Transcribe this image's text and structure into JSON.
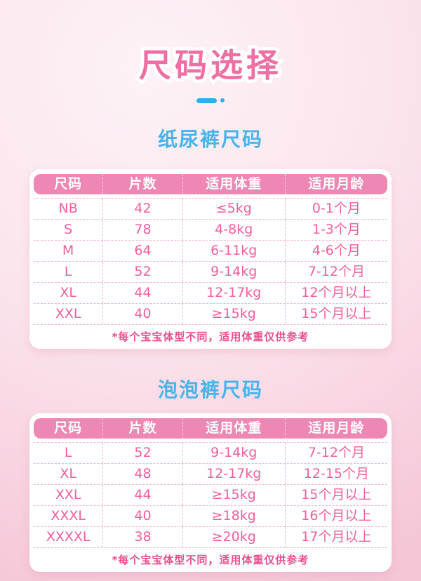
{
  "header": {
    "title": "尺码选择"
  },
  "colors": {
    "title_pink": "#ed6fa3",
    "accent_blue": "#2cb0e9",
    "section_blue": "#47b4e9",
    "table_header_bg": "#ee87b4",
    "table_header_text": "#ffffff",
    "cell_text_pink": "#ee609d",
    "footnote_pink": "#e8508f",
    "dashed_line_pink": "#f2b6d0",
    "background_light": "#fdf2f6",
    "background_deep": "#f4c6d6",
    "card_bg": "#ffffff"
  },
  "tables": [
    {
      "title": "纸尿裤尺码",
      "columns": [
        "尺码",
        "片数",
        "适用体重",
        "适用月龄"
      ],
      "rows": [
        {
          "cells": [
            "NB",
            "42",
            "≤5kg",
            "0-1个月"
          ]
        },
        {
          "cells": [
            "S",
            "78",
            "4-8kg",
            "1-3个月"
          ]
        },
        {
          "cells": [
            "M",
            "64",
            "6-11kg",
            "4-6个月"
          ]
        },
        {
          "cells": [
            "L",
            "52",
            "9-14kg",
            "7-12个月"
          ]
        },
        {
          "cells": [
            "XL",
            "44",
            "12-17kg",
            "12个月以上"
          ]
        },
        {
          "cells": [
            "XXL",
            "40",
            "≥15kg",
            "15个月以上"
          ]
        }
      ],
      "footnote": "*每个宝宝体型不同，适用体重仅供参考"
    },
    {
      "title": "泡泡裤尺码",
      "columns": [
        "尺码",
        "片数",
        "适用体重",
        "适用月龄"
      ],
      "rows": [
        {
          "cells": [
            "L",
            "52",
            "9-14kg",
            "7-12个月"
          ]
        },
        {
          "cells": [
            "XL",
            "48",
            "12-17kg",
            "12-15个月"
          ]
        },
        {
          "cells": [
            "XXL",
            "44",
            "≥15kg",
            "15个月以上"
          ]
        },
        {
          "cells": [
            "XXXL",
            "40",
            "≥18kg",
            "16个月以上"
          ]
        },
        {
          "cells": [
            "XXXXL",
            "38",
            "≥20kg",
            "17个月以上"
          ]
        }
      ],
      "footnote": "*每个宝宝体型不同，适用体重仅供参考"
    }
  ]
}
